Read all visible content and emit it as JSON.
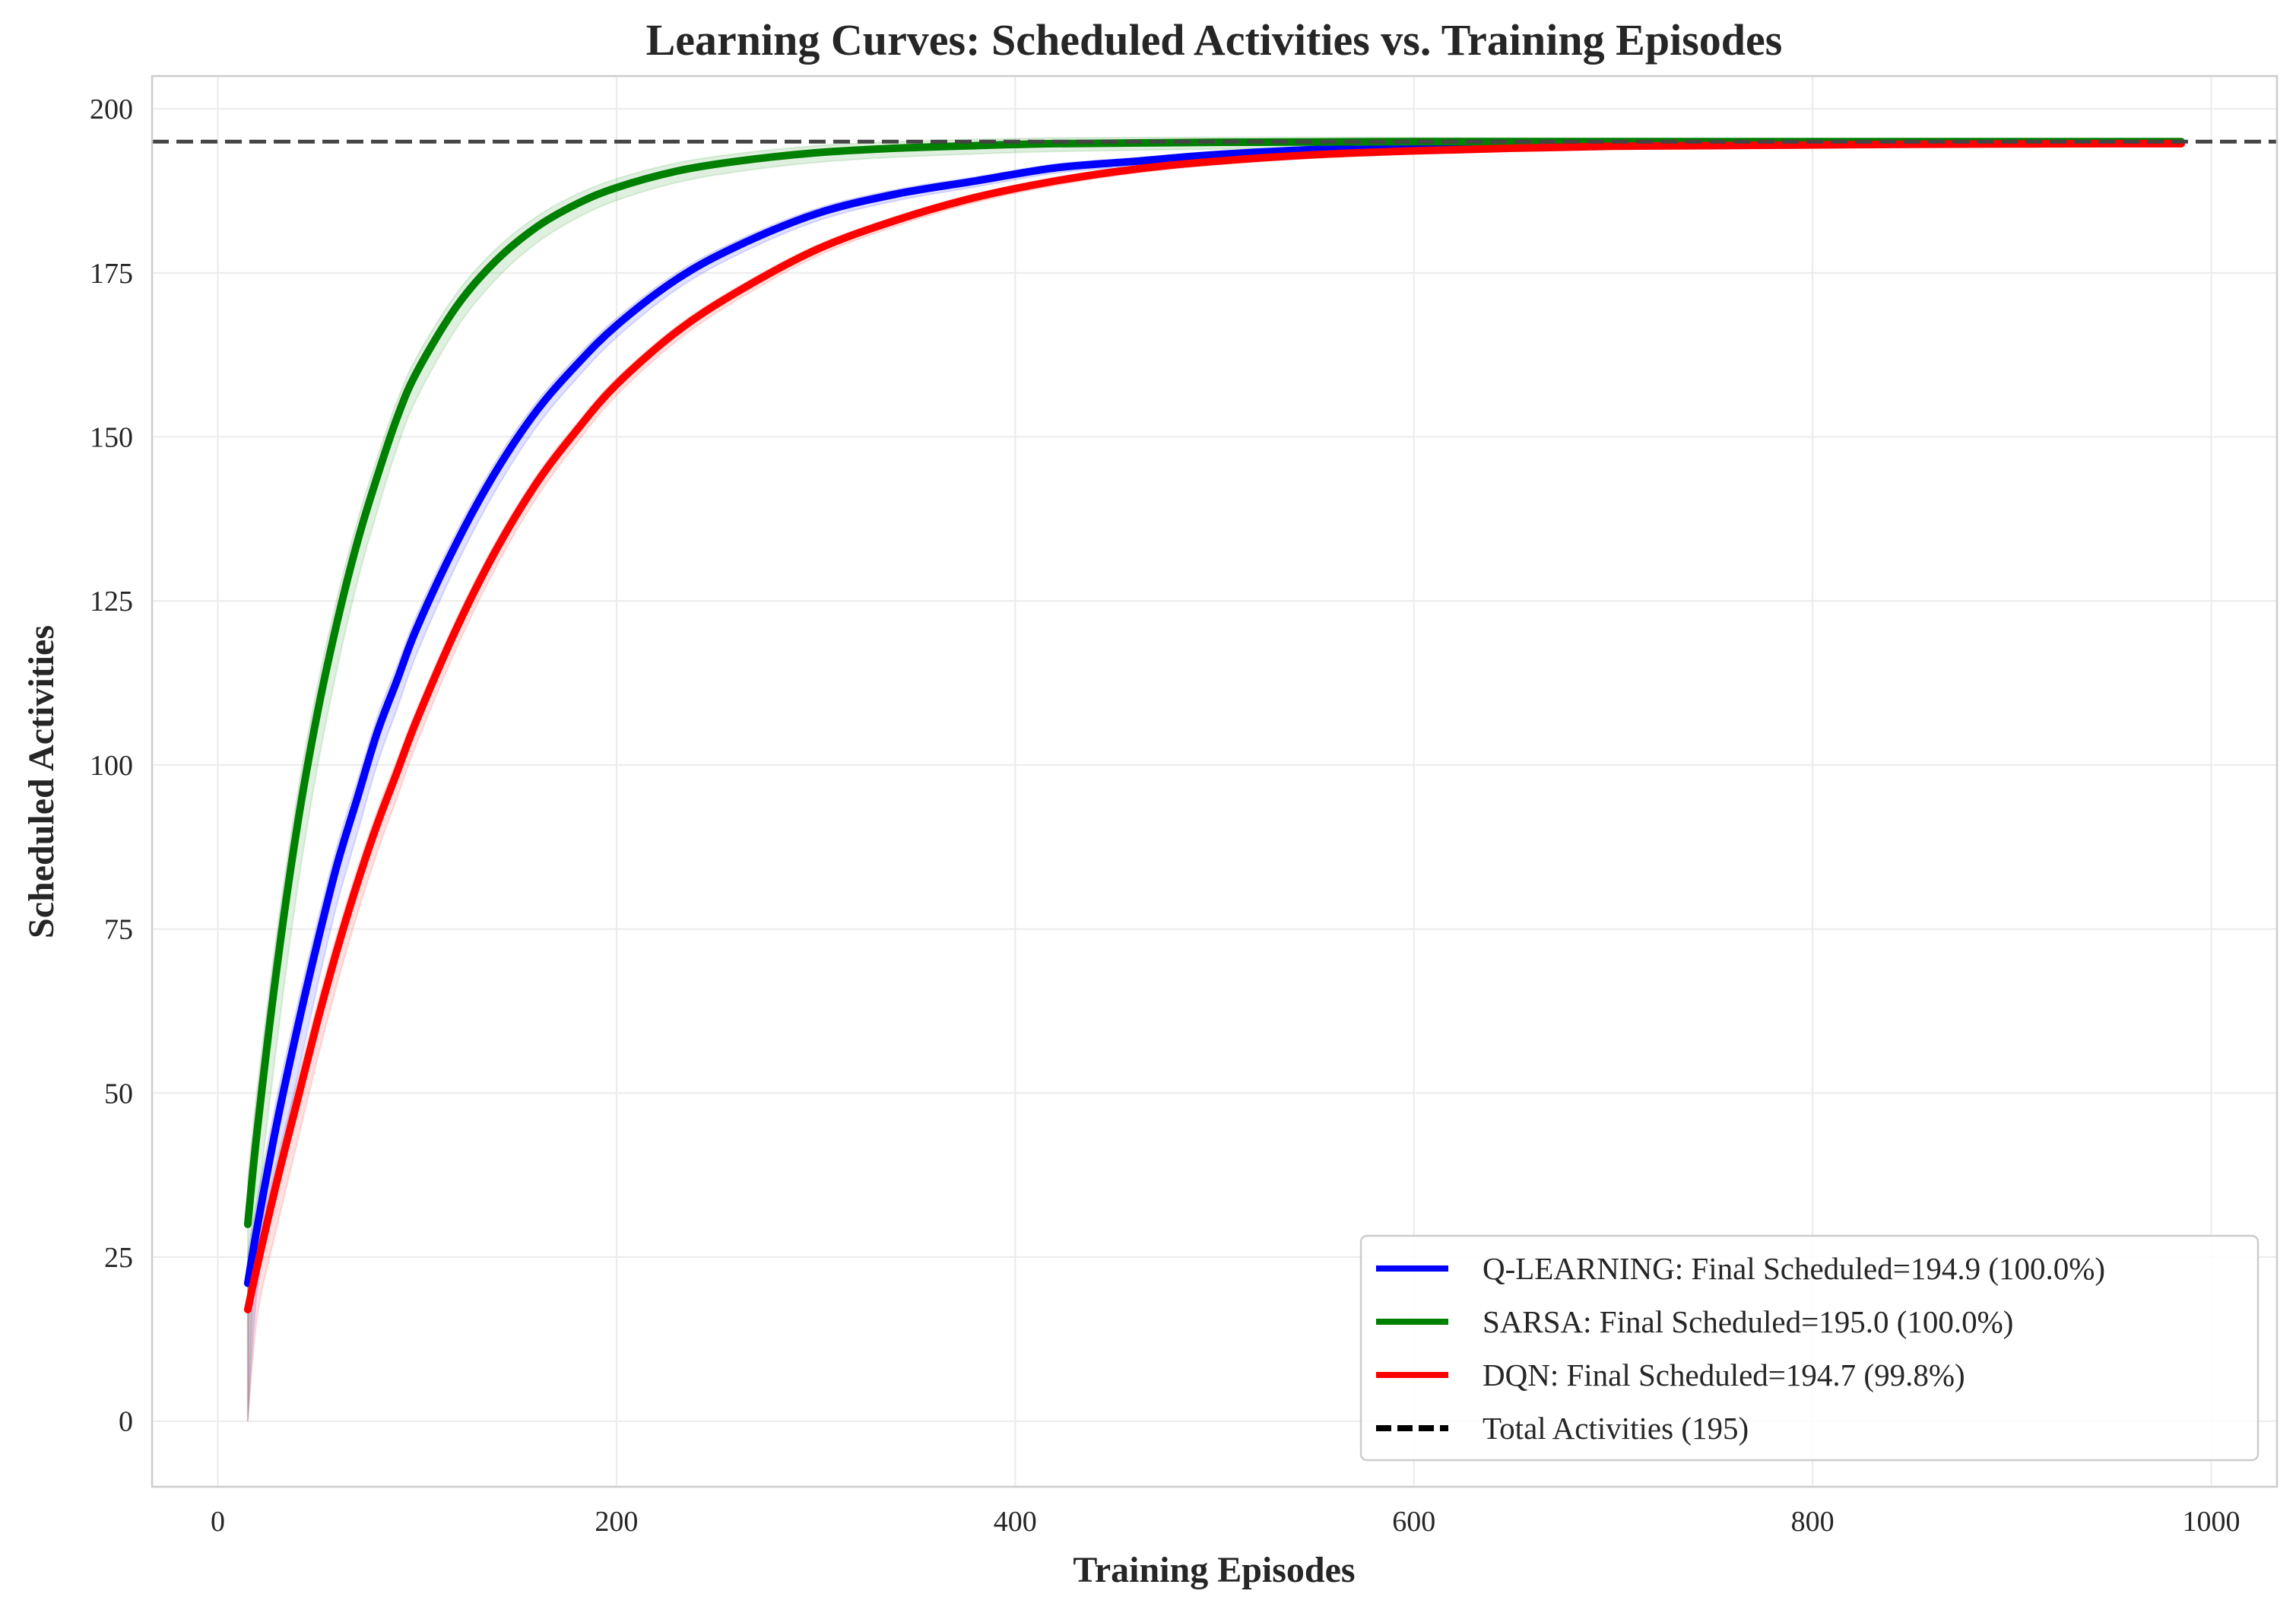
{
  "chart_data": {
    "type": "line",
    "title": "Learning Curves: Scheduled Activities vs. Training Episodes",
    "xlabel": "Training Episodes",
    "ylabel": "Scheduled Activities",
    "xlim": [
      -33,
      1033
    ],
    "ylim": [
      -10,
      205
    ],
    "x_ticks": [
      0,
      200,
      400,
      600,
      800,
      1000
    ],
    "y_ticks": [
      0,
      25,
      50,
      75,
      100,
      125,
      150,
      175,
      200
    ],
    "grid": true,
    "legend_position": "lower right",
    "x": [
      15,
      20,
      30,
      40,
      50,
      60,
      70,
      80,
      90,
      100,
      120,
      140,
      160,
      180,
      200,
      230,
      260,
      300,
      340,
      380,
      420,
      460,
      500,
      550,
      600,
      650,
      700,
      750,
      800,
      850,
      900,
      950,
      985
    ],
    "series": [
      {
        "name": "Q-LEARNING: Final Scheduled=194.9 (100.0%)",
        "color": "#0000ff",
        "values": [
          21,
          30,
          46,
          60,
          73,
          85,
          95,
          105,
          113,
          121,
          134,
          145,
          154,
          161,
          167,
          174,
          179,
          184,
          187,
          189,
          191,
          192,
          193,
          193.8,
          194.2,
          194.5,
          194.6,
          194.7,
          194.8,
          194.85,
          194.9,
          194.9,
          194.9
        ],
        "band": 5
      },
      {
        "name": "SARSA: Final Scheduled=195.0 (100.0%)",
        "color": "#008000",
        "values": [
          30,
          45,
          70,
          91,
          108,
          122,
          134,
          144,
          153,
          160,
          170,
          177,
          182,
          185.5,
          188,
          190.5,
          192,
          193.3,
          194,
          194.4,
          194.7,
          194.8,
          194.9,
          194.95,
          195,
          195,
          195,
          195,
          195,
          195,
          195,
          195,
          195
        ],
        "band": 8
      },
      {
        "name": "DQN: Final Scheduled=194.7 (99.8%)",
        "color": "#ff0000",
        "values": [
          17,
          24,
          37,
          49,
          61,
          72,
          82,
          91,
          99,
          107,
          121,
          133,
          143,
          151,
          158,
          166,
          172,
          178.5,
          183,
          186.5,
          189,
          190.8,
          192,
          193,
          193.6,
          194,
          194.3,
          194.4,
          194.5,
          194.6,
          194.65,
          194.7,
          194.7
        ],
        "band": 4
      }
    ],
    "reference_line": {
      "name": "Total Activities (195)",
      "value": 195,
      "color": "#000000"
    }
  }
}
